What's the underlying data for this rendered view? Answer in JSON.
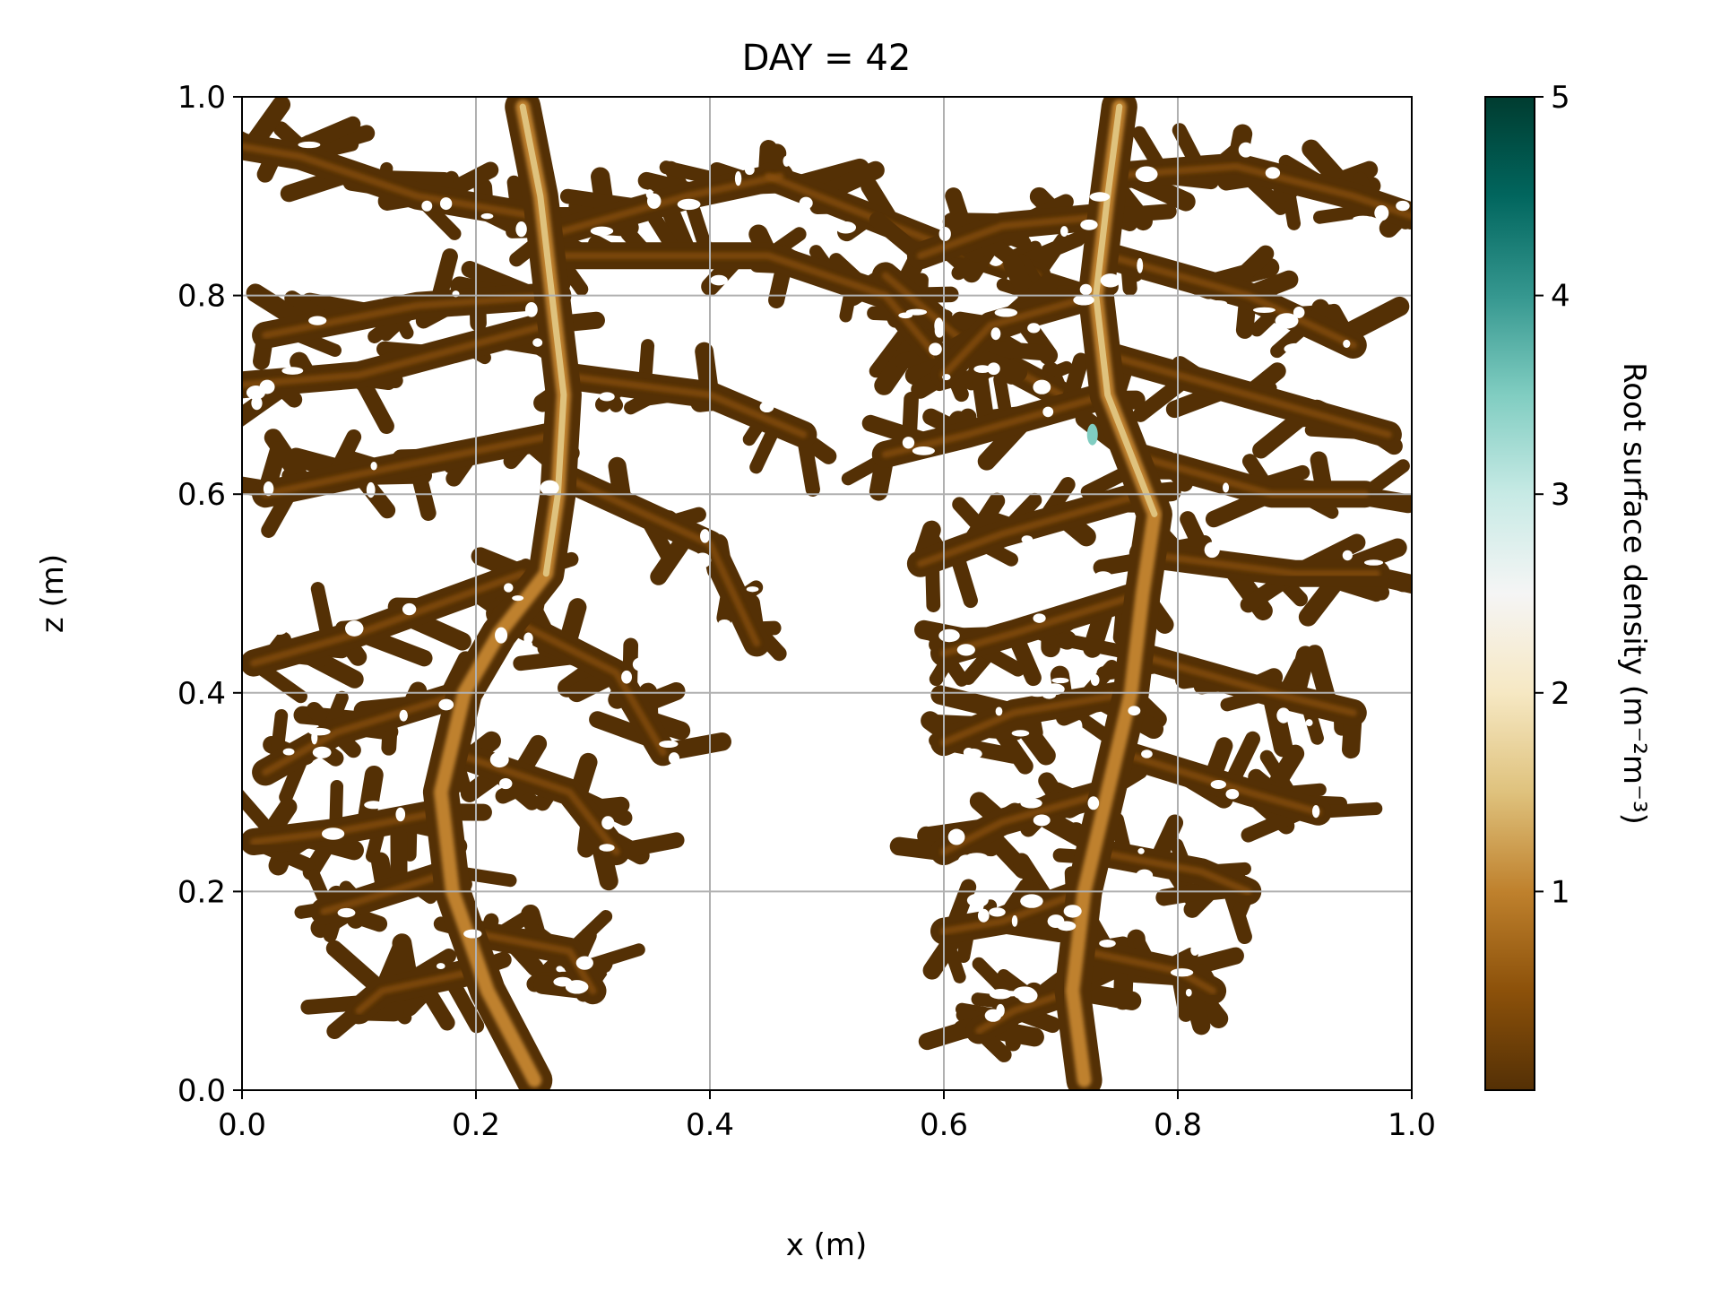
{
  "chart_data": {
    "type": "heatmap",
    "title": "DAY = 42",
    "xlabel": "x (m)",
    "ylabel": "z (m)",
    "xlim": [
      0.0,
      1.0
    ],
    "ylim": [
      0.0,
      1.0
    ],
    "xticks": [
      "0.0",
      "0.2",
      "0.4",
      "0.6",
      "0.8",
      "1.0"
    ],
    "yticks": [
      "0.0",
      "0.2",
      "0.4",
      "0.6",
      "0.8",
      "1.0"
    ],
    "grid": true,
    "colorbar": {
      "label": "Root surface density (m⁻²m⁻³)",
      "range": [
        0,
        5
      ],
      "ticks": [
        "1",
        "2",
        "3",
        "4",
        "5"
      ],
      "colormap": [
        "#543005",
        "#8c510a",
        "#bf812d",
        "#dfc27d",
        "#f6e8c3",
        "#f5f5f5",
        "#c7eae5",
        "#80cdc1",
        "#35978f",
        "#01665e",
        "#003c30"
      ]
    },
    "root_systems": [
      {
        "name": "left",
        "main_root": [
          [
            0.24,
            0.99
          ],
          [
            0.255,
            0.9
          ],
          [
            0.265,
            0.8
          ],
          [
            0.275,
            0.7
          ],
          [
            0.27,
            0.6
          ],
          [
            0.26,
            0.52
          ],
          [
            0.22,
            0.46
          ],
          [
            0.19,
            0.4
          ],
          [
            0.17,
            0.3
          ],
          [
            0.18,
            0.2
          ],
          [
            0.21,
            0.1
          ],
          [
            0.25,
            0.01
          ]
        ],
        "laterals": [
          [
            [
              0.25,
              0.88
            ],
            [
              0.15,
              0.9
            ],
            [
              0.05,
              0.94
            ],
            [
              0.0,
              0.95
            ]
          ],
          [
            [
              0.26,
              0.86
            ],
            [
              0.38,
              0.9
            ],
            [
              0.46,
              0.92
            ]
          ],
          [
            [
              0.27,
              0.84
            ],
            [
              0.45,
              0.84
            ],
            [
              0.55,
              0.8
            ],
            [
              0.6,
              0.73
            ]
          ],
          [
            [
              0.27,
              0.8
            ],
            [
              0.15,
              0.79
            ],
            [
              0.02,
              0.76
            ]
          ],
          [
            [
              0.26,
              0.77
            ],
            [
              0.1,
              0.72
            ],
            [
              0.0,
              0.71
            ]
          ],
          [
            [
              0.27,
              0.72
            ],
            [
              0.4,
              0.7
            ],
            [
              0.48,
              0.66
            ]
          ],
          [
            [
              0.27,
              0.66
            ],
            [
              0.1,
              0.62
            ],
            [
              0.02,
              0.6
            ]
          ],
          [
            [
              0.27,
              0.62
            ],
            [
              0.4,
              0.55
            ],
            [
              0.44,
              0.45
            ]
          ],
          [
            [
              0.24,
              0.52
            ],
            [
              0.1,
              0.46
            ],
            [
              0.01,
              0.43
            ]
          ],
          [
            [
              0.22,
              0.48
            ],
            [
              0.32,
              0.42
            ],
            [
              0.36,
              0.34
            ]
          ],
          [
            [
              0.19,
              0.4
            ],
            [
              0.08,
              0.36
            ],
            [
              0.02,
              0.32
            ]
          ],
          [
            [
              0.18,
              0.34
            ],
            [
              0.28,
              0.3
            ],
            [
              0.32,
              0.24
            ]
          ],
          [
            [
              0.17,
              0.28
            ],
            [
              0.08,
              0.26
            ],
            [
              0.01,
              0.25
            ]
          ],
          [
            [
              0.18,
              0.22
            ],
            [
              0.1,
              0.19
            ],
            [
              0.07,
              0.18
            ]
          ],
          [
            [
              0.19,
              0.16
            ],
            [
              0.28,
              0.14
            ],
            [
              0.3,
              0.1
            ]
          ],
          [
            [
              0.2,
              0.12
            ],
            [
              0.12,
              0.1
            ],
            [
              0.1,
              0.08
            ]
          ],
          [
            [
              0.45,
              0.92
            ],
            [
              0.6,
              0.85
            ],
            [
              0.68,
              0.82
            ]
          ],
          [
            [
              0.55,
              0.82
            ],
            [
              0.62,
              0.75
            ],
            [
              0.7,
              0.7
            ]
          ]
        ]
      },
      {
        "name": "right",
        "main_root": [
          [
            0.75,
            0.99
          ],
          [
            0.74,
            0.9
          ],
          [
            0.73,
            0.8
          ],
          [
            0.74,
            0.7
          ],
          [
            0.76,
            0.64
          ],
          [
            0.78,
            0.58
          ],
          [
            0.77,
            0.5
          ],
          [
            0.76,
            0.4
          ],
          [
            0.74,
            0.3
          ],
          [
            0.72,
            0.2
          ],
          [
            0.71,
            0.1
          ],
          [
            0.72,
            0.01
          ]
        ],
        "laterals": [
          [
            [
              0.74,
              0.92
            ],
            [
              0.85,
              0.93
            ],
            [
              0.95,
              0.9
            ],
            [
              1.0,
              0.88
            ]
          ],
          [
            [
              0.74,
              0.88
            ],
            [
              0.65,
              0.87
            ],
            [
              0.58,
              0.84
            ]
          ],
          [
            [
              0.74,
              0.84
            ],
            [
              0.86,
              0.8
            ],
            [
              0.95,
              0.75
            ]
          ],
          [
            [
              0.73,
              0.8
            ],
            [
              0.64,
              0.77
            ],
            [
              0.6,
              0.72
            ]
          ],
          [
            [
              0.74,
              0.74
            ],
            [
              0.86,
              0.7
            ],
            [
              0.98,
              0.66
            ]
          ],
          [
            [
              0.74,
              0.7
            ],
            [
              0.62,
              0.66
            ],
            [
              0.55,
              0.64
            ]
          ],
          [
            [
              0.76,
              0.64
            ],
            [
              0.88,
              0.6
            ],
            [
              0.96,
              0.6
            ]
          ],
          [
            [
              0.77,
              0.6
            ],
            [
              0.65,
              0.56
            ],
            [
              0.58,
              0.53
            ]
          ],
          [
            [
              0.77,
              0.54
            ],
            [
              0.9,
              0.52
            ],
            [
              0.97,
              0.52
            ]
          ],
          [
            [
              0.77,
              0.5
            ],
            [
              0.66,
              0.46
            ],
            [
              0.6,
              0.44
            ]
          ],
          [
            [
              0.76,
              0.44
            ],
            [
              0.88,
              0.4
            ],
            [
              0.95,
              0.38
            ]
          ],
          [
            [
              0.76,
              0.4
            ],
            [
              0.66,
              0.38
            ],
            [
              0.6,
              0.35
            ]
          ],
          [
            [
              0.75,
              0.34
            ],
            [
              0.86,
              0.3
            ],
            [
              0.92,
              0.28
            ]
          ],
          [
            [
              0.74,
              0.3
            ],
            [
              0.65,
              0.27
            ],
            [
              0.6,
              0.24
            ]
          ],
          [
            [
              0.73,
              0.24
            ],
            [
              0.82,
              0.22
            ],
            [
              0.86,
              0.2
            ]
          ],
          [
            [
              0.72,
              0.2
            ],
            [
              0.65,
              0.17
            ],
            [
              0.6,
              0.16
            ]
          ],
          [
            [
              0.72,
              0.14
            ],
            [
              0.8,
              0.12
            ],
            [
              0.83,
              0.1
            ]
          ],
          [
            [
              0.71,
              0.1
            ],
            [
              0.66,
              0.08
            ],
            [
              0.63,
              0.06
            ]
          ]
        ]
      }
    ],
    "hotspot": {
      "x": 0.727,
      "z": 0.66,
      "value": 3.0
    }
  }
}
